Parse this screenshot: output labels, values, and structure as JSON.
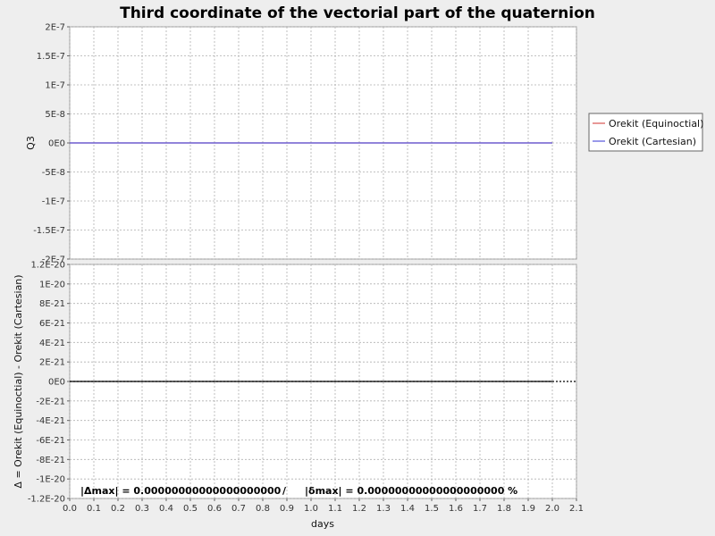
{
  "chart_data": {
    "type": "line",
    "title": "Third coordinate of the vectorial part of the quaternion",
    "xlabel": "days",
    "x_ticks": [
      "0.0",
      "0.1",
      "0.2",
      "0.3",
      "0.4",
      "0.5",
      "0.6",
      "0.7",
      "0.8",
      "0.9",
      "1.0",
      "1.1",
      "1.2",
      "1.3",
      "1.4",
      "1.5",
      "1.6",
      "1.7",
      "1.8",
      "1.9",
      "2.0",
      "2.1"
    ],
    "xlim": [
      0.0,
      2.1
    ],
    "grid": true,
    "legend_position": "right",
    "panels": [
      {
        "ylabel": "Q3",
        "ylim": [
          -2e-07,
          2e-07
        ],
        "y_ticks": [
          "2E-7",
          "1.5E-7",
          "1E-7",
          "5E-8",
          "0E0",
          "-5E-8",
          "-1E-7",
          "-1.5E-7",
          "-2E-7"
        ],
        "series": [
          {
            "name": "Orekit (Equinoctial)",
            "color": "#d9534f",
            "x": [
              0.0,
              2.0
            ],
            "y": [
              0,
              0
            ]
          },
          {
            "name": "Orekit (Cartesian)",
            "color": "#5555dd",
            "x": [
              0.0,
              2.0
            ],
            "y": [
              0,
              0
            ]
          }
        ]
      },
      {
        "ylabel": "Δ = Orekit (Equinoctial) - Orekit (Cartesian)",
        "ylim": [
          -1.2e-20,
          1.2e-20
        ],
        "y_ticks": [
          "1.2E-20",
          "1E-20",
          "8E-21",
          "6E-21",
          "4E-21",
          "2E-21",
          "0E0",
          "-2E-21",
          "-4E-21",
          "-6E-21",
          "-8E-21",
          "-1E-20",
          "-1.2E-20"
        ],
        "series": [
          {
            "color": "#000000",
            "x": [
              0.0,
              2.0
            ],
            "y": [
              0,
              0
            ]
          }
        ],
        "zero_line": true,
        "annotation": {
          "delta": "|Δmax| = 0.00000000000000000000",
          "separator": "/",
          "delta_rel": "|δmax| = 0.00000000000000000000 %"
        }
      }
    ]
  }
}
